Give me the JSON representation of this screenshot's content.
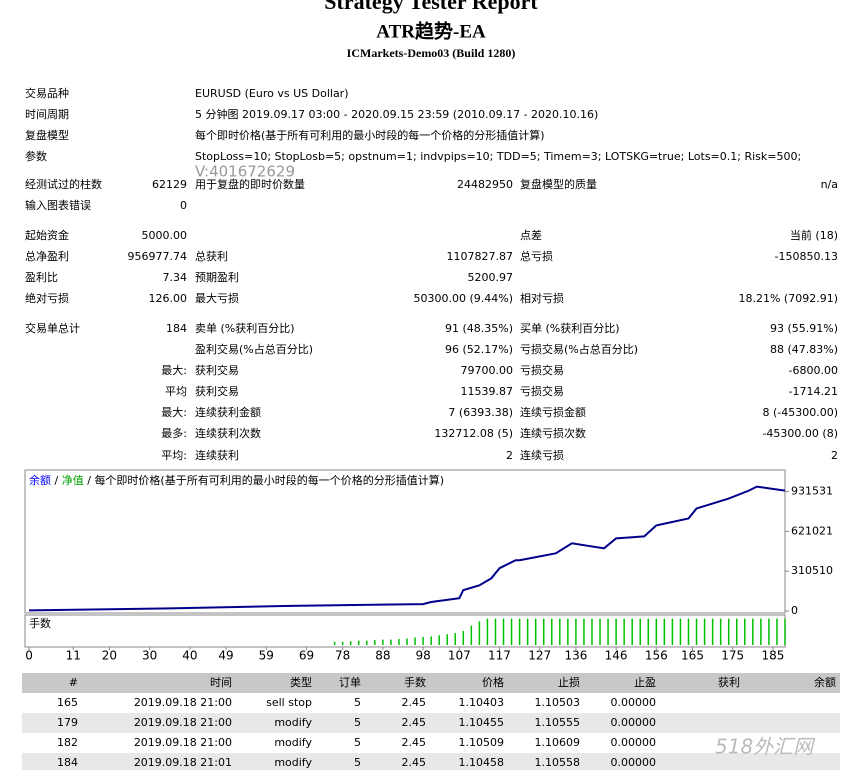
{
  "header": {
    "title": "Strategy Tester Report",
    "ea": "ATR趋势-EA",
    "server": "ICMarkets-Demo03 (Build 1280)"
  },
  "settings": [
    {
      "label": "交易品种",
      "value": "EURUSD (Euro vs US Dollar)"
    },
    {
      "label": "时间周期",
      "value": "5 分钟图 2019.09.17 03:00 - 2020.09.15 23:59 (2010.09.17 - 2020.10.16)"
    },
    {
      "label": "复盘模型",
      "value": "每个即时价格(基于所有可利用的最小时段的每一个价格的分形插值计算)"
    },
    {
      "label": "参数",
      "value": "StopLoss=10; StopLosb=5; opstnum=1; indvpips=10; TDD=5; Timem=3; LOTSKG=true; Lots=0.1; Risk=500;"
    }
  ],
  "watermark_id": "V:401672629",
  "stats": [
    [
      "经测试过的柱数",
      "62129",
      "用于复盘的即时价数量",
      "24482950",
      "复盘模型的质量",
      "n/a"
    ],
    [
      "输入图表错误",
      "0",
      null,
      null,
      null,
      null
    ],
    [
      "起始资金",
      "5000.00",
      null,
      null,
      "点差",
      "当前 (18)"
    ],
    [
      "总净盈利",
      "956977.74",
      "总获利",
      "1107827.87",
      "总亏损",
      "-150850.13"
    ],
    [
      "盈利比",
      "7.34",
      "预期盈利",
      "5200.97",
      null,
      null
    ],
    [
      "绝对亏损",
      "126.00",
      "最大亏损",
      "50300.00 (9.44%)",
      "相对亏损",
      "18.21% (7092.91)"
    ],
    [
      "交易单总计",
      "184",
      "卖单 (%获利百分比)",
      "91 (48.35%)",
      "买单 (%获利百分比)",
      "93 (55.91%)"
    ],
    [
      null,
      null,
      "盈利交易(%占总百分比)",
      "96 (52.17%)",
      "亏损交易(%占总百分比)",
      "88 (47.83%)"
    ],
    [
      null,
      "最大:",
      "获利交易",
      "79700.00",
      "亏损交易",
      "-6800.00"
    ],
    [
      null,
      "平均",
      "获利交易",
      "11539.87",
      "亏损交易",
      "-1714.21"
    ],
    [
      null,
      "最大:",
      "连续获利金额",
      "7 (6393.38)",
      "连续亏损金额",
      "8 (-45300.00)"
    ],
    [
      null,
      "最多:",
      "连续获利次数",
      "132712.08 (5)",
      "连续亏损次数",
      "-45300.00 (8)"
    ],
    [
      null,
      "平均:",
      "连续获利",
      "2",
      "连续亏损",
      "2"
    ]
  ],
  "chart_data": {
    "type": "line",
    "legend": [
      {
        "name": "余额",
        "color": "#0000ff"
      },
      {
        "name": "净值",
        "color": "#00a000"
      }
    ],
    "legend_separator": "/",
    "caption": "每个即时价格(基于所有可利用的最小时段的每一个价格的分形插值计算)",
    "x": [
      0,
      35,
      65,
      98,
      100,
      107,
      108,
      112,
      115,
      117,
      121,
      122,
      131,
      135,
      143,
      146,
      153,
      156,
      164,
      166,
      174,
      179,
      181,
      188
    ],
    "series": [
      {
        "name": "余额",
        "color": "#00008b",
        "values": [
          5000,
          20000,
          40000,
          54000,
          70000,
          100000,
          163000,
          200000,
          256000,
          334000,
          396000,
          396000,
          450000,
          528000,
          489000,
          567000,
          582000,
          668000,
          722000,
          800000,
          877000,
          939000,
          970000,
          939000
        ]
      }
    ],
    "xlim": [
      -1,
      188
    ],
    "xticks": [
      0,
      11,
      20,
      30,
      40,
      49,
      59,
      69,
      78,
      88,
      98,
      107,
      117,
      127,
      136,
      146,
      156,
      165,
      175,
      185
    ],
    "ylim": [
      0,
      1100000
    ],
    "yticks": [
      0,
      310510,
      621021,
      931531
    ],
    "volume": {
      "label": "手数",
      "color": "#00c000",
      "ylim": [
        0,
        2.6
      ],
      "x": [
        76,
        78,
        80,
        82,
        84,
        86,
        88,
        90,
        92,
        94,
        96,
        98,
        100,
        102,
        104,
        106,
        108,
        110,
        112,
        114,
        116,
        118,
        120,
        122,
        124,
        126,
        128,
        130,
        132,
        134,
        136,
        138,
        140,
        142,
        144,
        146,
        148,
        150,
        152,
        154,
        156,
        158,
        160,
        162,
        164,
        166,
        168,
        170,
        172,
        174,
        176,
        178,
        180,
        182,
        184,
        186,
        188
      ],
      "values": [
        0.3,
        0.3,
        0.35,
        0.4,
        0.4,
        0.45,
        0.5,
        0.5,
        0.55,
        0.6,
        0.7,
        0.75,
        0.8,
        0.9,
        1.0,
        1.1,
        1.3,
        1.8,
        2.2,
        2.45,
        2.45,
        2.45,
        2.45,
        2.45,
        2.45,
        2.45,
        2.45,
        2.45,
        2.45,
        2.45,
        2.45,
        2.45,
        2.45,
        2.45,
        2.45,
        2.45,
        2.45,
        2.45,
        2.45,
        2.45,
        2.45,
        2.45,
        2.45,
        2.45,
        2.45,
        2.45,
        2.45,
        2.45,
        2.45,
        2.45,
        2.45,
        2.45,
        2.45,
        2.45,
        2.45,
        2.45,
        2.45
      ]
    }
  },
  "trades": {
    "columns": [
      "#",
      "时间",
      "类型",
      "订单",
      "手数",
      "价格",
      "止损",
      "止盈",
      "获利",
      "余额"
    ],
    "rows": [
      [
        "165",
        "2019.09.18 21:00",
        "sell stop",
        "5",
        "2.45",
        "1.10403",
        "1.10503",
        "0.00000",
        null,
        null
      ],
      [
        "179",
        "2019.09.18 21:00",
        "modify",
        "5",
        "2.45",
        "1.10455",
        "1.10555",
        "0.00000",
        null,
        null
      ],
      [
        "182",
        "2019.09.18 21:00",
        "modify",
        "5",
        "2.45",
        "1.10509",
        "1.10609",
        "0.00000",
        null,
        null
      ],
      [
        "184",
        "2019.09.18 21:01",
        "modify",
        "5",
        "2.45",
        "1.10458",
        "1.10558",
        "0.00000",
        null,
        null
      ]
    ]
  },
  "site_watermark": "518外汇网"
}
